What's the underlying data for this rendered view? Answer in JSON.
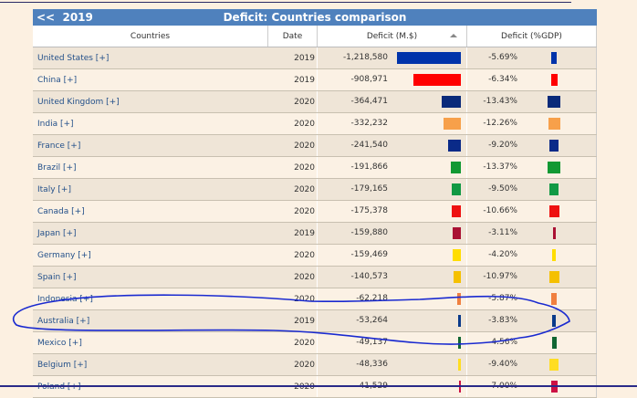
{
  "header": {
    "back_label": "<<",
    "year": "2019",
    "title": "Deficit: Countries comparison"
  },
  "columns": [
    "Countries",
    "Date",
    "Deficit (M.$)",
    "Deficit (%GDP)"
  ],
  "rows": [
    {
      "country": "United States [+]",
      "date": "2019",
      "musd": "-1,218,580",
      "musd_value": 1218580,
      "gdp": "-5.69%",
      "gdp_value": 5.69,
      "color": "#0033aa"
    },
    {
      "country": "China [+]",
      "date": "2019",
      "musd": "-908,971",
      "musd_value": 908971,
      "gdp": "-6.34%",
      "gdp_value": 6.34,
      "color": "#ff0000"
    },
    {
      "country": "United Kingdom [+]",
      "date": "2020",
      "musd": "-364,471",
      "musd_value": 364471,
      "gdp": "-13.43%",
      "gdp_value": 13.43,
      "color": "#0a2a7a"
    },
    {
      "country": "India [+]",
      "date": "2020",
      "musd": "-332,232",
      "musd_value": 332232,
      "gdp": "-12.26%",
      "gdp_value": 12.26,
      "color": "#f7a04a"
    },
    {
      "country": "France [+]",
      "date": "2020",
      "musd": "-241,540",
      "musd_value": 241540,
      "gdp": "-9.20%",
      "gdp_value": 9.2,
      "color": "#0a2a88"
    },
    {
      "country": "Brazil [+]",
      "date": "2020",
      "musd": "-191,866",
      "musd_value": 191866,
      "gdp": "-13.37%",
      "gdp_value": 13.37,
      "color": "#119933"
    },
    {
      "country": "Italy [+]",
      "date": "2020",
      "musd": "-179,165",
      "musd_value": 179165,
      "gdp": "-9.50%",
      "gdp_value": 9.5,
      "color": "#119944"
    },
    {
      "country": "Canada [+]",
      "date": "2020",
      "musd": "-175,378",
      "musd_value": 175378,
      "gdp": "-10.66%",
      "gdp_value": 10.66,
      "color": "#ee1111"
    },
    {
      "country": "Japan [+]",
      "date": "2019",
      "musd": "-159,880",
      "musd_value": 159880,
      "gdp": "-3.11%",
      "gdp_value": 3.11,
      "color": "#aa1133"
    },
    {
      "country": "Germany [+]",
      "date": "2020",
      "musd": "-159,469",
      "musd_value": 159469,
      "gdp": "-4.20%",
      "gdp_value": 4.2,
      "color": "#ffdd00"
    },
    {
      "country": "Spain [+]",
      "date": "2020",
      "musd": "-140,573",
      "musd_value": 140573,
      "gdp": "-10.97%",
      "gdp_value": 10.97,
      "color": "#f5c000"
    },
    {
      "country": "Indonesia [+]",
      "date": "2020",
      "musd": "-62,218",
      "musd_value": 62218,
      "gdp": "-5.87%",
      "gdp_value": 5.87,
      "color": "#f08040"
    },
    {
      "country": "Australia [+]",
      "date": "2019",
      "musd": "-53,264",
      "musd_value": 53264,
      "gdp": "-3.83%",
      "gdp_value": 3.83,
      "color": "#0a3a8a"
    },
    {
      "country": "Mexico [+]",
      "date": "2020",
      "musd": "-49,137",
      "musd_value": 49137,
      "gdp": "-4.56%",
      "gdp_value": 4.56,
      "color": "#116633"
    },
    {
      "country": "Belgium [+]",
      "date": "2020",
      "musd": "-48,336",
      "musd_value": 48336,
      "gdp": "-9.40%",
      "gdp_value": 9.4,
      "color": "#ffdd22"
    },
    {
      "country": "Poland [+]",
      "date": "2020",
      "musd": "-41,529",
      "musd_value": 41529,
      "gdp": "-7.00%",
      "gdp_value": 7.0,
      "color": "#cc1144"
    }
  ]
}
